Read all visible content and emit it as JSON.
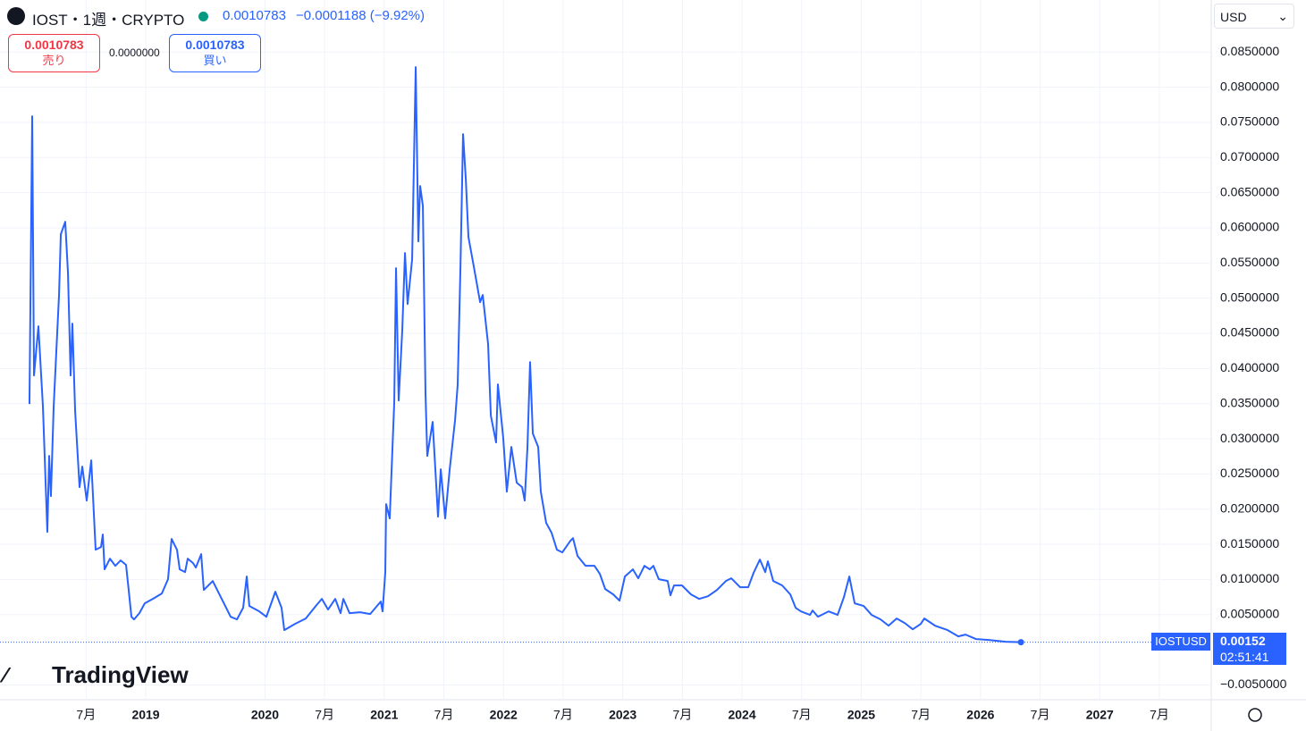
{
  "header": {
    "symbol": "IOST・1週・CRYPTO",
    "last": "0.0010783",
    "change": "−0.0001188 (−9.92%)",
    "sell": {
      "price": "0.0010783",
      "label": "売り"
    },
    "spread": "0.0000000",
    "buy": {
      "price": "0.0010783",
      "label": "買い"
    },
    "currency": "USD",
    "brand": "TradingView",
    "axis_symbol": "IOSTUSD",
    "countdown": "02:51:41"
  },
  "chart_data": {
    "type": "line",
    "grid": true,
    "xlim": [
      2017.778,
      2027.935
    ],
    "ylim": [
      -0.0071,
      0.0924
    ],
    "xticks": [
      {
        "value": 2018.5,
        "label": "7月"
      },
      2019,
      2020,
      {
        "value": 2020.5,
        "label": "7月"
      },
      2021,
      {
        "value": 2021.5,
        "label": "7月"
      },
      2022,
      {
        "value": 2022.5,
        "label": "7月"
      },
      2023,
      {
        "value": 2023.5,
        "label": "7月"
      },
      2024,
      {
        "value": 2024.5,
        "label": "7月"
      },
      2025,
      {
        "value": 2025.5,
        "label": "7月"
      },
      2026,
      {
        "value": 2026.5,
        "label": "7月"
      },
      2027,
      {
        "value": 2027.5,
        "label": "7月"
      }
    ],
    "yticks": [
      {
        "value": -0.005,
        "label": "−0.0050000"
      },
      {
        "value": 0.005,
        "label": "0.0050000"
      },
      {
        "value": 0.01,
        "label": "0.0100000"
      },
      {
        "value": 0.015,
        "label": "0.0150000"
      },
      {
        "value": 0.02,
        "label": "0.0200000"
      },
      {
        "value": 0.025,
        "label": "0.0250000"
      },
      {
        "value": 0.03,
        "label": "0.0300000"
      },
      {
        "value": 0.035,
        "label": "0.0350000"
      },
      {
        "value": 0.04,
        "label": "0.0400000"
      },
      {
        "value": 0.045,
        "label": "0.0450000"
      },
      {
        "value": 0.05,
        "label": "0.0500000"
      },
      {
        "value": 0.055,
        "label": "0.0550000"
      },
      {
        "value": 0.06,
        "label": "0.0600000"
      },
      {
        "value": 0.065,
        "label": "0.0650000"
      },
      {
        "value": 0.07,
        "label": "0.0700000"
      },
      {
        "value": 0.075,
        "label": "0.0750000"
      },
      {
        "value": 0.08,
        "label": "0.0800000"
      },
      {
        "value": 0.085,
        "label": "0.0850000"
      }
    ],
    "x": [
      2018.025,
      2018.048,
      2018.063,
      2018.1,
      2018.138,
      2018.175,
      2018.19,
      2018.205,
      2018.228,
      2018.273,
      2018.288,
      2018.325,
      2018.348,
      2018.37,
      2018.385,
      2018.408,
      2018.445,
      2018.468,
      2018.505,
      2018.543,
      2018.58,
      2018.625,
      2018.64,
      2018.655,
      2018.7,
      2018.745,
      2018.79,
      2018.835,
      2018.857,
      2018.88,
      2018.902,
      2018.947,
      2018.992,
      2019.06,
      2019.135,
      2019.187,
      2019.217,
      2019.262,
      2019.285,
      2019.33,
      2019.352,
      2019.397,
      2019.42,
      2019.465,
      2019.487,
      2019.562,
      2019.637,
      2019.712,
      2019.765,
      2019.817,
      2019.847,
      2019.869,
      2019.952,
      2020.012,
      2020.087,
      2020.139,
      2020.162,
      2020.252,
      2020.342,
      2020.432,
      2020.477,
      2020.529,
      2020.589,
      2020.634,
      2020.657,
      2020.709,
      2020.799,
      2020.882,
      2020.971,
      2020.986,
      2021.009,
      2021.016,
      2021.046,
      2021.084,
      2021.099,
      2021.121,
      2021.151,
      2021.174,
      2021.196,
      2021.234,
      2021.264,
      2021.286,
      2021.301,
      2021.324,
      2021.346,
      2021.361,
      2021.406,
      2021.451,
      2021.474,
      2021.511,
      2021.549,
      2021.594,
      2021.616,
      2021.639,
      2021.661,
      2021.684,
      2021.706,
      2021.751,
      2021.804,
      2021.826,
      2021.871,
      2021.894,
      2021.938,
      2021.953,
      2021.998,
      2022.028,
      2022.066,
      2022.111,
      2022.156,
      2022.178,
      2022.201,
      2022.223,
      2022.246,
      2022.291,
      2022.313,
      2022.358,
      2022.403,
      2022.448,
      2022.493,
      2022.561,
      2022.583,
      2022.621,
      2022.688,
      2022.763,
      2022.808,
      2022.853,
      2022.92,
      2022.973,
      2023.018,
      2023.085,
      2023.13,
      2023.182,
      2023.227,
      2023.257,
      2023.302,
      2023.377,
      2023.4,
      2023.43,
      2023.497,
      2023.572,
      2023.64,
      2023.715,
      2023.79,
      2023.865,
      2023.91,
      2023.985,
      2024.052,
      2024.097,
      2024.15,
      2024.195,
      2024.217,
      2024.262,
      2024.337,
      2024.405,
      2024.45,
      2024.495,
      2024.57,
      2024.592,
      2024.637,
      2024.727,
      2024.802,
      2024.855,
      2024.9,
      2024.945,
      2025.02,
      2025.087,
      2025.162,
      2025.229,
      2025.297,
      2025.364,
      2025.432,
      2025.499,
      2025.529,
      2025.619,
      2025.724,
      2025.814,
      2025.874,
      2025.964,
      2026.069,
      2026.211,
      2026.339
    ],
    "series": [
      {
        "color": "#2962ff",
        "values": [
          0.03494,
          0.07586,
          0.03901,
          0.046,
          0.03456,
          0.01677,
          0.02757,
          0.02186,
          0.03456,
          0.05045,
          0.05909,
          0.06086,
          0.05362,
          0.03901,
          0.04638,
          0.03393,
          0.02313,
          0.02605,
          0.02122,
          0.02694,
          0.01423,
          0.01461,
          0.01639,
          0.01144,
          0.01296,
          0.01194,
          0.01271,
          0.01207,
          0.00851,
          0.0047,
          0.00432,
          0.00521,
          0.00661,
          0.00724,
          0.00801,
          0.01004,
          0.01576,
          0.01423,
          0.01144,
          0.01105,
          0.01296,
          0.01233,
          0.01169,
          0.0136,
          0.00851,
          0.00978,
          0.00724,
          0.0047,
          0.00432,
          0.00597,
          0.01042,
          0.00623,
          0.00546,
          0.0047,
          0.00826,
          0.00597,
          0.0028,
          0.00368,
          0.00445,
          0.00635,
          0.00724,
          0.00572,
          0.00724,
          0.00521,
          0.00724,
          0.00521,
          0.00534,
          0.00508,
          0.00686,
          0.00546,
          0.01105,
          0.02071,
          0.01868,
          0.0352,
          0.05426,
          0.03545,
          0.04536,
          0.05642,
          0.04917,
          0.05553,
          0.08285,
          0.05807,
          0.06595,
          0.06315,
          0.03647,
          0.02757,
          0.0324,
          0.01893,
          0.02567,
          0.01868,
          0.02567,
          0.03266,
          0.03774,
          0.05426,
          0.07332,
          0.06696,
          0.0587,
          0.05451,
          0.04943,
          0.05045,
          0.04346,
          0.03329,
          0.02948,
          0.03774,
          0.03011,
          0.02249,
          0.02884,
          0.02376,
          0.02313,
          0.02122,
          0.02884,
          0.04091,
          0.03075,
          0.02884,
          0.02249,
          0.01804,
          0.01665,
          0.01423,
          0.01385,
          0.0155,
          0.01588,
          0.01334,
          0.01194,
          0.01194,
          0.0108,
          0.00864,
          0.00788,
          0.00699,
          0.01042,
          0.01144,
          0.01017,
          0.01194,
          0.01144,
          0.01194,
          0.01004,
          0.00978,
          0.00775,
          0.00915,
          0.00915,
          0.00788,
          0.00724,
          0.00762,
          0.00851,
          0.00978,
          0.01017,
          0.00889,
          0.00889,
          0.01093,
          0.01283,
          0.01105,
          0.01258,
          0.00978,
          0.00915,
          0.00788,
          0.00597,
          0.00546,
          0.00496,
          0.00559,
          0.0047,
          0.00546,
          0.00496,
          0.0075,
          0.01042,
          0.00661,
          0.00623,
          0.00496,
          0.00432,
          0.00343,
          0.00445,
          0.00381,
          0.00292,
          0.00368,
          0.00445,
          0.00343,
          0.0028,
          0.00191,
          0.00216,
          0.00152,
          0.0014,
          0.00114,
          0.0010783
        ]
      }
    ]
  }
}
